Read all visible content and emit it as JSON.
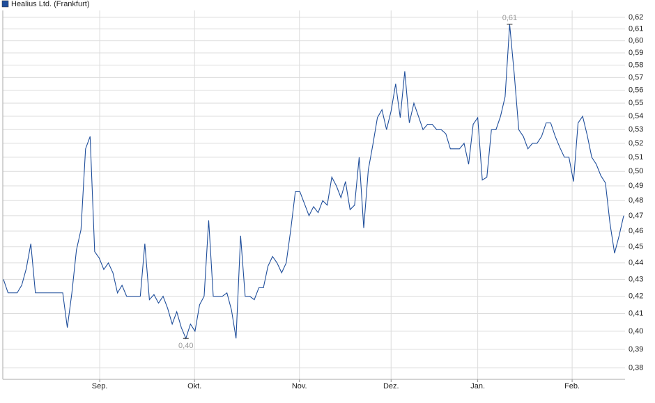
{
  "chart_data": {
    "type": "line",
    "log_scale": true,
    "grid": true,
    "legend": "top-left",
    "series": [
      {
        "name": "Healius Ltd. (Frankfurt)",
        "color": "#1f4e9b",
        "values": [
          0.43,
          0.422,
          0.422,
          0.422,
          0.4265,
          0.4365,
          0.452,
          0.422,
          0.422,
          0.422,
          0.422,
          0.422,
          0.422,
          0.422,
          0.402,
          0.422,
          0.448,
          0.461,
          0.516,
          0.525,
          0.447,
          0.443,
          0.436,
          0.44,
          0.434,
          0.422,
          0.4265,
          0.42,
          0.42,
          0.42,
          0.42,
          0.452,
          0.418,
          0.421,
          0.416,
          0.42,
          0.413,
          0.404,
          0.411,
          0.402,
          0.396,
          0.404,
          0.4,
          0.415,
          0.42,
          0.467,
          0.42,
          0.42,
          0.42,
          0.422,
          0.412,
          0.396,
          0.457,
          0.42,
          0.42,
          0.418,
          0.425,
          0.425,
          0.438,
          0.444,
          0.44,
          0.434,
          0.44,
          0.461,
          0.486,
          0.486,
          0.478,
          0.47,
          0.476,
          0.472,
          0.48,
          0.477,
          0.496,
          0.49,
          0.482,
          0.493,
          0.474,
          0.477,
          0.51,
          0.462,
          0.501,
          0.519,
          0.539,
          0.545,
          0.53,
          0.544,
          0.565,
          0.539,
          0.575,
          0.535,
          0.55,
          0.54,
          0.53,
          0.534,
          0.534,
          0.53,
          0.53,
          0.527,
          0.516,
          0.516,
          0.516,
          0.52,
          0.505,
          0.534,
          0.539,
          0.494,
          0.496,
          0.53,
          0.53,
          0.54,
          0.555,
          0.614,
          0.573,
          0.53,
          0.525,
          0.516,
          0.52,
          0.52,
          0.525,
          0.535,
          0.535,
          0.525,
          0.517,
          0.51,
          0.51,
          0.493,
          0.535,
          0.54,
          0.526,
          0.51,
          0.505,
          0.497,
          0.492,
          0.465,
          0.446,
          0.457,
          0.47
        ]
      }
    ],
    "xlim": [
      -0.15,
      136.3
    ],
    "xticks": [
      {
        "value": 21.1,
        "label": "Sep."
      },
      {
        "value": 41.9,
        "label": "Okt."
      },
      {
        "value": 64.9,
        "label": "Nov."
      },
      {
        "value": 85,
        "label": "Dez."
      },
      {
        "value": 104,
        "label": "Jan."
      },
      {
        "value": 124.7,
        "label": "Feb."
      }
    ],
    "ylim": [
      0.374,
      0.626
    ],
    "yticks": [
      {
        "value": 0.38,
        "label": "0,38"
      },
      {
        "value": 0.39,
        "label": "0,39"
      },
      {
        "value": 0.4,
        "label": "0,40"
      },
      {
        "value": 0.41,
        "label": "0,41"
      },
      {
        "value": 0.42,
        "label": "0,42"
      },
      {
        "value": 0.43,
        "label": "0,43"
      },
      {
        "value": 0.44,
        "label": "0,44"
      },
      {
        "value": 0.45,
        "label": "0,45"
      },
      {
        "value": 0.46,
        "label": "0,46"
      },
      {
        "value": 0.47,
        "label": "0,47"
      },
      {
        "value": 0.48,
        "label": "0,48"
      },
      {
        "value": 0.49,
        "label": "0,49"
      },
      {
        "value": 0.5,
        "label": "0,50"
      },
      {
        "value": 0.51,
        "label": "0,51"
      },
      {
        "value": 0.52,
        "label": "0,52"
      },
      {
        "value": 0.53,
        "label": "0,53"
      },
      {
        "value": 0.54,
        "label": "0,54"
      },
      {
        "value": 0.55,
        "label": "0,55"
      },
      {
        "value": 0.56,
        "label": "0,56"
      },
      {
        "value": 0.57,
        "label": "0,57"
      },
      {
        "value": 0.58,
        "label": "0,58"
      },
      {
        "value": 0.59,
        "label": "0,59"
      },
      {
        "value": 0.6,
        "label": "0,60"
      },
      {
        "value": 0.61,
        "label": "0,61"
      },
      {
        "value": 0.62,
        "label": "0,62"
      }
    ],
    "annotations": [
      {
        "text": "0,61",
        "x": 111,
        "y": 0.614
      },
      {
        "text": "0,40",
        "x": 40,
        "y": 0.396
      }
    ]
  }
}
